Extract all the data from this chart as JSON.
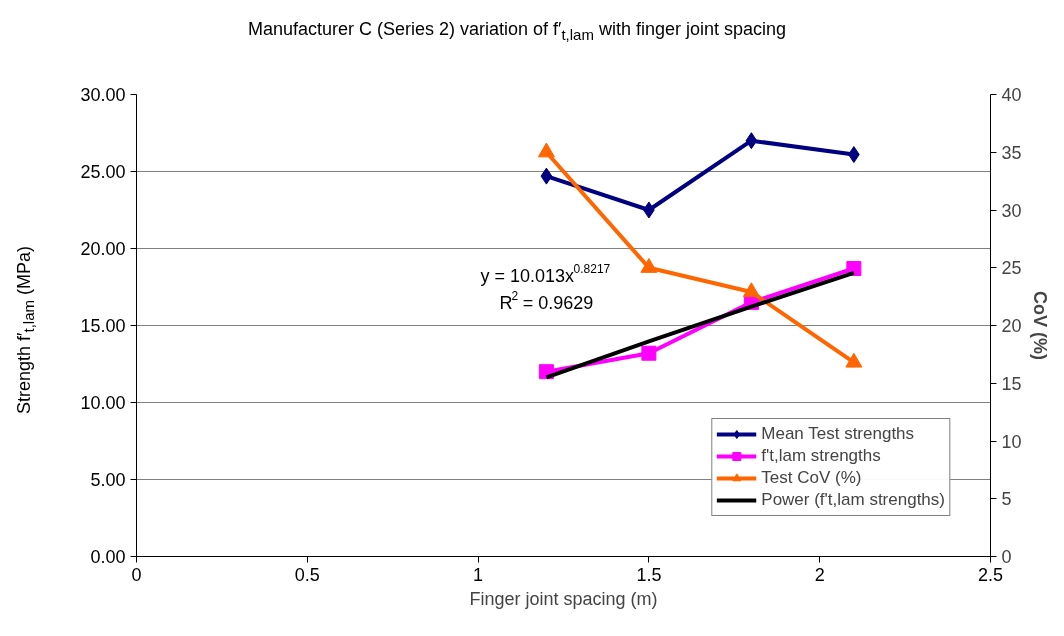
{
  "chart_data": {
    "type": "line",
    "title": "Manufacturer C (Series 2) variation of f′$_{t,lam}$ with finger joint spacing",
    "xlabel": "Finger joint spacing (m)",
    "ylabel": "Strength f′$_{t,lam}$ (MPa)",
    "y2label": "CoV (%)",
    "x": [
      1.2,
      1.5,
      1.8,
      2.1
    ],
    "series": [
      {
        "name": "Mean Test strengths",
        "color": "#000080",
        "marker": "diamond",
        "values": [
          24.7,
          22.5,
          27.0,
          26.1
        ]
      },
      {
        "name": "f't,lam strengths",
        "color": "#ff00ff",
        "marker": "square",
        "values": [
          12.0,
          13.2,
          16.5,
          18.7
        ]
      },
      {
        "name": "Test CoV (%)",
        "color": "#ff6600",
        "marker": "triangle",
        "axis": "y2",
        "values": [
          35,
          25,
          22.9,
          16.8
        ]
      },
      {
        "name": "Power (f't,lam strengths)",
        "color": "#000000",
        "marker": "none",
        "values": [
          11.63,
          13.97,
          16.23,
          18.42
        ]
      }
    ],
    "xlim": [
      0,
      2.5
    ],
    "xticks": [
      0,
      0.5,
      1,
      1.5,
      2,
      2.5
    ],
    "ylim": [
      0,
      30
    ],
    "yticks": [
      {
        "value": 0,
        "label": "0.00"
      },
      {
        "value": 5,
        "label": "5.00"
      },
      {
        "value": 10,
        "label": "10.00"
      },
      {
        "value": 15,
        "label": "15.00"
      },
      {
        "value": 20,
        "label": "20.00"
      },
      {
        "value": 25,
        "label": "25.00"
      },
      {
        "value": 30,
        "label": "30.00"
      }
    ],
    "y2lim": [
      0,
      40
    ],
    "y2ticks": [
      0,
      5,
      10,
      15,
      20,
      25,
      30,
      35,
      40
    ],
    "grid": "y",
    "legend": "bottom right",
    "annotations": [
      "y = 10.013x$^{0.8217}$",
      "R$^{2}$ = 0.9629"
    ]
  }
}
